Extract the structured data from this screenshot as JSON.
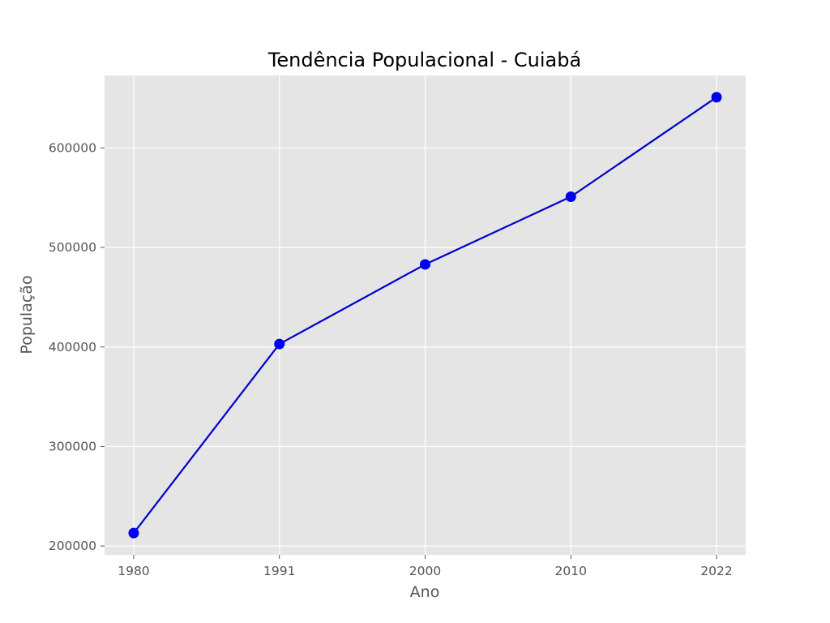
{
  "chart_data": {
    "type": "line",
    "title": "Tendência Populacional - Cuiabá",
    "xlabel": "Ano",
    "ylabel": "População",
    "x": [
      1980,
      1991,
      2000,
      2010,
      2022
    ],
    "x_tick_labels": [
      "1980",
      "1991",
      "2000",
      "2010",
      "2022"
    ],
    "series": [
      {
        "values": [
          213000,
          403000,
          483000,
          551000,
          651000
        ]
      }
    ],
    "y_ticks": [
      200000,
      300000,
      400000,
      500000,
      600000
    ],
    "y_tick_labels": [
      "200000",
      "300000",
      "400000",
      "500000",
      "600000"
    ],
    "ylim": [
      191100,
      672900
    ],
    "grid": true,
    "marker": "circle",
    "colors": {
      "line": "#0000cc",
      "marker": "#0000ee",
      "plot_background": "#e5e5e5",
      "grid": "#ffffff",
      "tick_text": "#555555"
    }
  }
}
